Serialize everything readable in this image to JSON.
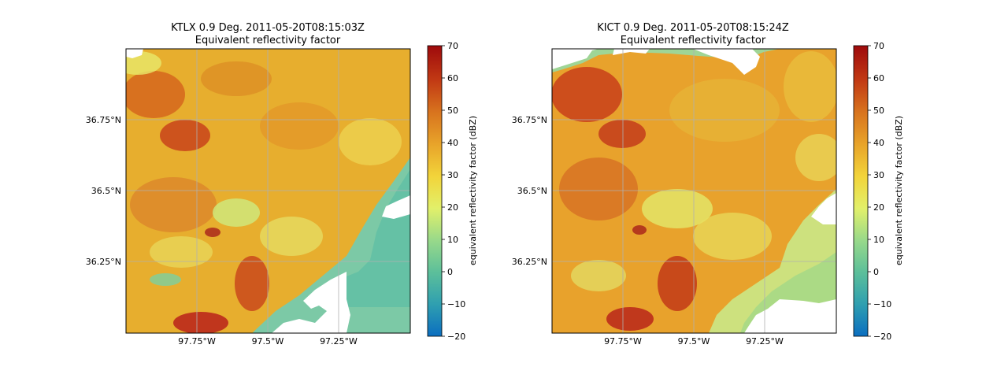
{
  "chart_data": [
    {
      "type": "heatmap",
      "title": "KTLX 0.9 Deg. 2011-05-20T08:15:03Z",
      "subtitle": "Equivalent reflectivity factor",
      "x_tick_labels": [
        "97.75°W",
        "97.5°W",
        "97.25°W"
      ],
      "x_tick_values": [
        -97.75,
        -97.5,
        -97.25
      ],
      "y_tick_labels": [
        "36.75°N",
        "36.5°N",
        "36.25°N"
      ],
      "y_tick_values": [
        36.75,
        36.5,
        36.25
      ],
      "xlim": [
        -98.0,
        -97.0
      ],
      "ylim": [
        36.0,
        37.0
      ],
      "grid": true,
      "colorbar": {
        "label": "equivalent reflectivity factor (dBZ)",
        "range": [
          -20,
          70
        ],
        "ticks": [
          "70",
          "60",
          "50",
          "40",
          "30",
          "20",
          "10",
          "0",
          "−10",
          "−20"
        ],
        "tick_values": [
          70,
          60,
          50,
          40,
          30,
          20,
          10,
          0,
          -10,
          -20
        ]
      }
    },
    {
      "type": "heatmap",
      "title": "KICT 0.9 Deg. 2011-05-20T08:15:24Z",
      "subtitle": "Equivalent reflectivity factor",
      "x_tick_labels": [
        "97.75°W",
        "97.5°W",
        "97.25°W"
      ],
      "x_tick_values": [
        -97.75,
        -97.5,
        -97.25
      ],
      "y_tick_labels": [
        "36.75°N",
        "36.5°N",
        "36.25°N"
      ],
      "y_tick_values": [
        36.75,
        36.5,
        36.25
      ],
      "xlim": [
        -98.0,
        -97.0
      ],
      "ylim": [
        36.0,
        37.0
      ],
      "grid": true,
      "colorbar": {
        "label": "equivalent reflectivity factor (dBZ)",
        "range": [
          -20,
          70
        ],
        "ticks": [
          "70",
          "60",
          "50",
          "40",
          "30",
          "20",
          "10",
          "0",
          "−10",
          "−20"
        ],
        "tick_values": [
          70,
          60,
          50,
          40,
          30,
          20,
          10,
          0,
          -10,
          -20
        ]
      }
    }
  ]
}
